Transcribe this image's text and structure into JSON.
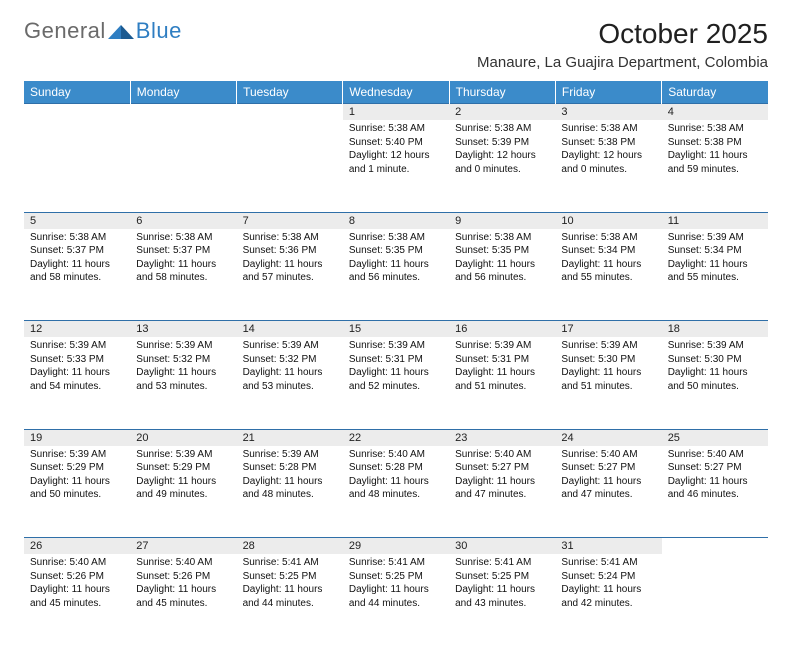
{
  "brand": {
    "part1": "General",
    "part2": "Blue"
  },
  "title": "October 2025",
  "location": "Manaure, La Guajira Department, Colombia",
  "colors": {
    "header_bg": "#3b8bca",
    "header_text": "#ffffff",
    "row_rule": "#2f6fa8",
    "daynum_bg": "#ececec",
    "logo_grey": "#6a6a6a",
    "logo_blue": "#2f7ec2"
  },
  "dayHeaders": [
    "Sunday",
    "Monday",
    "Tuesday",
    "Wednesday",
    "Thursday",
    "Friday",
    "Saturday"
  ],
  "weeks": [
    [
      null,
      null,
      null,
      {
        "n": "1",
        "sr": "5:38 AM",
        "ss": "5:40 PM",
        "dl": "12 hours and 1 minute."
      },
      {
        "n": "2",
        "sr": "5:38 AM",
        "ss": "5:39 PM",
        "dl": "12 hours and 0 minutes."
      },
      {
        "n": "3",
        "sr": "5:38 AM",
        "ss": "5:38 PM",
        "dl": "12 hours and 0 minutes."
      },
      {
        "n": "4",
        "sr": "5:38 AM",
        "ss": "5:38 PM",
        "dl": "11 hours and 59 minutes."
      }
    ],
    [
      {
        "n": "5",
        "sr": "5:38 AM",
        "ss": "5:37 PM",
        "dl": "11 hours and 58 minutes."
      },
      {
        "n": "6",
        "sr": "5:38 AM",
        "ss": "5:37 PM",
        "dl": "11 hours and 58 minutes."
      },
      {
        "n": "7",
        "sr": "5:38 AM",
        "ss": "5:36 PM",
        "dl": "11 hours and 57 minutes."
      },
      {
        "n": "8",
        "sr": "5:38 AM",
        "ss": "5:35 PM",
        "dl": "11 hours and 56 minutes."
      },
      {
        "n": "9",
        "sr": "5:38 AM",
        "ss": "5:35 PM",
        "dl": "11 hours and 56 minutes."
      },
      {
        "n": "10",
        "sr": "5:38 AM",
        "ss": "5:34 PM",
        "dl": "11 hours and 55 minutes."
      },
      {
        "n": "11",
        "sr": "5:39 AM",
        "ss": "5:34 PM",
        "dl": "11 hours and 55 minutes."
      }
    ],
    [
      {
        "n": "12",
        "sr": "5:39 AM",
        "ss": "5:33 PM",
        "dl": "11 hours and 54 minutes."
      },
      {
        "n": "13",
        "sr": "5:39 AM",
        "ss": "5:32 PM",
        "dl": "11 hours and 53 minutes."
      },
      {
        "n": "14",
        "sr": "5:39 AM",
        "ss": "5:32 PM",
        "dl": "11 hours and 53 minutes."
      },
      {
        "n": "15",
        "sr": "5:39 AM",
        "ss": "5:31 PM",
        "dl": "11 hours and 52 minutes."
      },
      {
        "n": "16",
        "sr": "5:39 AM",
        "ss": "5:31 PM",
        "dl": "11 hours and 51 minutes."
      },
      {
        "n": "17",
        "sr": "5:39 AM",
        "ss": "5:30 PM",
        "dl": "11 hours and 51 minutes."
      },
      {
        "n": "18",
        "sr": "5:39 AM",
        "ss": "5:30 PM",
        "dl": "11 hours and 50 minutes."
      }
    ],
    [
      {
        "n": "19",
        "sr": "5:39 AM",
        "ss": "5:29 PM",
        "dl": "11 hours and 50 minutes."
      },
      {
        "n": "20",
        "sr": "5:39 AM",
        "ss": "5:29 PM",
        "dl": "11 hours and 49 minutes."
      },
      {
        "n": "21",
        "sr": "5:39 AM",
        "ss": "5:28 PM",
        "dl": "11 hours and 48 minutes."
      },
      {
        "n": "22",
        "sr": "5:40 AM",
        "ss": "5:28 PM",
        "dl": "11 hours and 48 minutes."
      },
      {
        "n": "23",
        "sr": "5:40 AM",
        "ss": "5:27 PM",
        "dl": "11 hours and 47 minutes."
      },
      {
        "n": "24",
        "sr": "5:40 AM",
        "ss": "5:27 PM",
        "dl": "11 hours and 47 minutes."
      },
      {
        "n": "25",
        "sr": "5:40 AM",
        "ss": "5:27 PM",
        "dl": "11 hours and 46 minutes."
      }
    ],
    [
      {
        "n": "26",
        "sr": "5:40 AM",
        "ss": "5:26 PM",
        "dl": "11 hours and 45 minutes."
      },
      {
        "n": "27",
        "sr": "5:40 AM",
        "ss": "5:26 PM",
        "dl": "11 hours and 45 minutes."
      },
      {
        "n": "28",
        "sr": "5:41 AM",
        "ss": "5:25 PM",
        "dl": "11 hours and 44 minutes."
      },
      {
        "n": "29",
        "sr": "5:41 AM",
        "ss": "5:25 PM",
        "dl": "11 hours and 44 minutes."
      },
      {
        "n": "30",
        "sr": "5:41 AM",
        "ss": "5:25 PM",
        "dl": "11 hours and 43 minutes."
      },
      {
        "n": "31",
        "sr": "5:41 AM",
        "ss": "5:24 PM",
        "dl": "11 hours and 42 minutes."
      },
      null
    ]
  ],
  "labels": {
    "sunrise": "Sunrise:",
    "sunset": "Sunset:",
    "daylight": "Daylight:"
  }
}
